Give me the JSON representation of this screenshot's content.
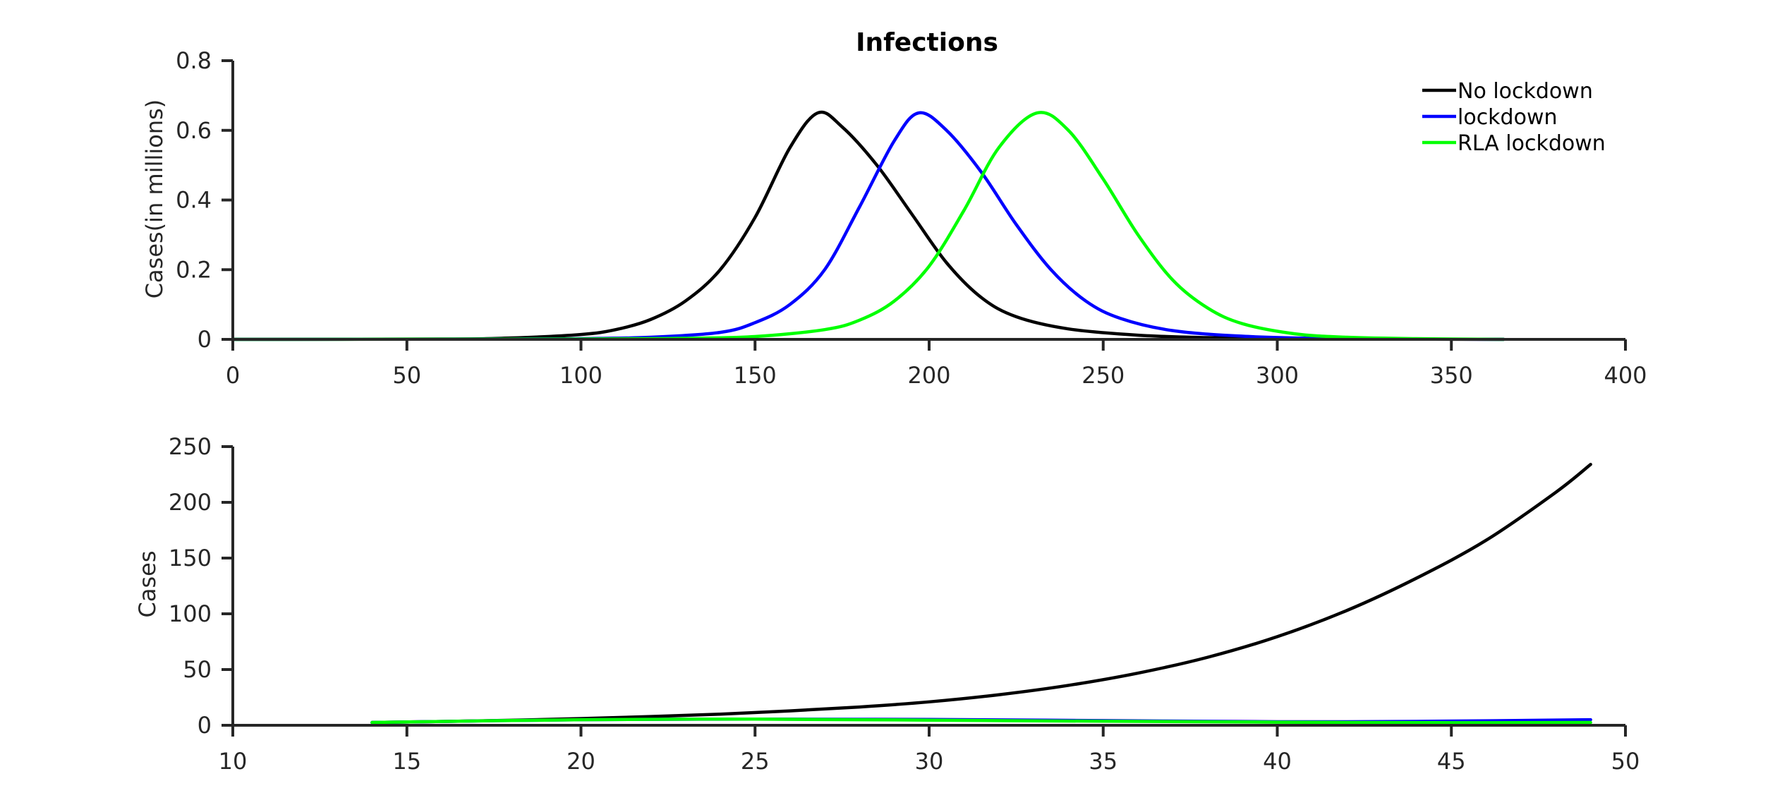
{
  "chart_data": [
    {
      "type": "line",
      "title": "Infections",
      "xlabel": "",
      "ylabel": "Cases(in millions)",
      "xlim": [
        0,
        400
      ],
      "ylim": [
        0,
        0.8
      ],
      "xticks": [
        "0",
        "50",
        "100",
        "150",
        "200",
        "250",
        "300",
        "350",
        "400"
      ],
      "yticks": [
        "0",
        "0.2",
        "0.4",
        "0.6",
        "0.8"
      ],
      "grid": false,
      "legend": "top-right",
      "series": [
        {
          "name": "No lockdown",
          "color": "#000000",
          "x": [
            0,
            60,
            80,
            100,
            110,
            120,
            130,
            140,
            150,
            160,
            168,
            175,
            185,
            195,
            205,
            215,
            225,
            240,
            260,
            280,
            300,
            320,
            340,
            365
          ],
          "y": [
            0.0,
            0.001,
            0.004,
            0.014,
            0.028,
            0.057,
            0.11,
            0.2,
            0.35,
            0.55,
            0.65,
            0.61,
            0.5,
            0.36,
            0.22,
            0.12,
            0.065,
            0.03,
            0.012,
            0.005,
            0.002,
            0.001,
            0.0005,
            0.0
          ]
        },
        {
          "name": "lockdown",
          "color": "#0000ff",
          "x": [
            0,
            80,
            100,
            120,
            140,
            150,
            160,
            170,
            180,
            190,
            197,
            205,
            215,
            225,
            235,
            245,
            255,
            270,
            290,
            310,
            330,
            350,
            365
          ],
          "y": [
            0.0,
            0.001,
            0.002,
            0.006,
            0.02,
            0.048,
            0.1,
            0.2,
            0.38,
            0.57,
            0.65,
            0.6,
            0.48,
            0.33,
            0.2,
            0.11,
            0.06,
            0.025,
            0.009,
            0.003,
            0.001,
            0.0005,
            0.0
          ]
        },
        {
          "name": "RLA lockdown",
          "color": "#00ff00",
          "x": [
            0,
            100,
            130,
            150,
            170,
            180,
            190,
            200,
            210,
            220,
            231,
            240,
            250,
            260,
            270,
            280,
            290,
            305,
            320,
            340,
            365
          ],
          "y": [
            0.0,
            0.001,
            0.003,
            0.008,
            0.028,
            0.055,
            0.11,
            0.21,
            0.37,
            0.55,
            0.65,
            0.6,
            0.46,
            0.3,
            0.17,
            0.09,
            0.045,
            0.016,
            0.006,
            0.002,
            0.0
          ]
        }
      ]
    },
    {
      "type": "line",
      "title": "",
      "xlabel": "",
      "ylabel": "Cases",
      "xlim": [
        10,
        50
      ],
      "ylim": [
        0,
        250
      ],
      "xticks": [
        "10",
        "15",
        "20",
        "25",
        "30",
        "35",
        "40",
        "45",
        "50"
      ],
      "yticks": [
        "0",
        "50",
        "100",
        "150",
        "200",
        "250"
      ],
      "grid": false,
      "series": [
        {
          "name": "No lockdown",
          "color": "#000000",
          "x": [
            14,
            16,
            18,
            20,
            22,
            24,
            26,
            28,
            30,
            32,
            34,
            36,
            38,
            40,
            42,
            44,
            46,
            48,
            49
          ],
          "y": [
            2.5,
            3.4,
            4.5,
            6,
            7.8,
            10,
            12.9,
            16.4,
            21,
            27.4,
            35.8,
            46.8,
            61,
            79.5,
            103,
            132,
            166,
            209,
            234
          ]
        },
        {
          "name": "lockdown",
          "color": "#0000ff",
          "x": [
            14,
            20,
            25,
            30,
            35,
            40,
            44,
            49
          ],
          "y": [
            2.5,
            5,
            5.5,
            5.2,
            4.2,
            3.2,
            3.5,
            5
          ]
        },
        {
          "name": "RLA lockdown",
          "color": "#00ff00",
          "x": [
            14,
            20,
            25,
            30,
            35,
            40,
            45,
            49
          ],
          "y": [
            2.5,
            5,
            5.5,
            4.6,
            3.6,
            2.8,
            2.3,
            2.5
          ]
        }
      ]
    }
  ]
}
